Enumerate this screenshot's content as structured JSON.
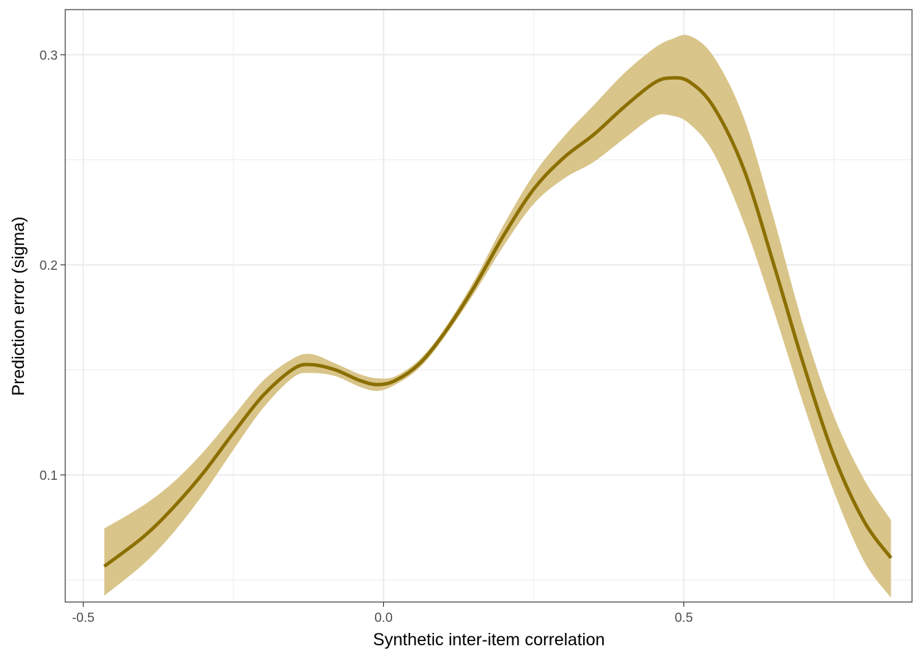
{
  "chart_data": {
    "type": "area",
    "title": "",
    "xlabel": "Synthetic inter-item correlation",
    "ylabel": "Prediction error (sigma)",
    "xlim": [
      -0.53,
      0.88
    ],
    "ylim": [
      0.0395,
      0.3215
    ],
    "x_ticks": [
      -0.5,
      0.0,
      0.5
    ],
    "x_tick_labels": [
      "-0.5",
      "0.0",
      "0.5"
    ],
    "y_ticks": [
      0.1,
      0.2,
      0.3
    ],
    "y_tick_labels": [
      "0.1",
      "0.2",
      "0.3"
    ],
    "grid": true,
    "legend": "none",
    "colors": {
      "line": "#8b6f00",
      "ribbon": "#d9c58a",
      "grid": "#ebebeb",
      "border": "#333333"
    },
    "series": [
      {
        "x": [
          -0.465,
          -0.4,
          -0.35,
          -0.3,
          -0.25,
          -0.2,
          -0.15,
          -0.12,
          -0.08,
          -0.04,
          -0.01,
          0.02,
          0.06,
          0.1,
          0.15,
          0.2,
          0.25,
          0.3,
          0.35,
          0.4,
          0.45,
          0.48,
          0.51,
          0.55,
          0.6,
          0.65,
          0.7,
          0.75,
          0.8,
          0.845
        ],
        "y": [
          0.0565,
          0.0705,
          0.0845,
          0.101,
          0.12,
          0.138,
          0.1505,
          0.1525,
          0.15,
          0.145,
          0.143,
          0.145,
          0.153,
          0.167,
          0.189,
          0.214,
          0.236,
          0.251,
          0.262,
          0.275,
          0.2865,
          0.289,
          0.287,
          0.275,
          0.2455,
          0.2,
          0.152,
          0.109,
          0.078,
          0.0605
        ],
        "lower": [
          0.0425,
          0.0575,
          0.0725,
          0.091,
          0.112,
          0.132,
          0.1465,
          0.1485,
          0.147,
          0.142,
          0.14,
          0.143,
          0.151,
          0.165,
          0.186,
          0.209,
          0.229,
          0.241,
          0.249,
          0.26,
          0.2705,
          0.271,
          0.267,
          0.253,
          0.22,
          0.178,
          0.133,
          0.092,
          0.059,
          0.0415
        ],
        "upper": [
          0.0745,
          0.0855,
          0.0965,
          0.111,
          0.128,
          0.145,
          0.1555,
          0.1575,
          0.153,
          0.148,
          0.146,
          0.147,
          0.155,
          0.169,
          0.192,
          0.219,
          0.243,
          0.261,
          0.276,
          0.291,
          0.303,
          0.3075,
          0.309,
          0.299,
          0.27,
          0.222,
          0.17,
          0.128,
          0.098,
          0.0785
        ]
      }
    ]
  }
}
